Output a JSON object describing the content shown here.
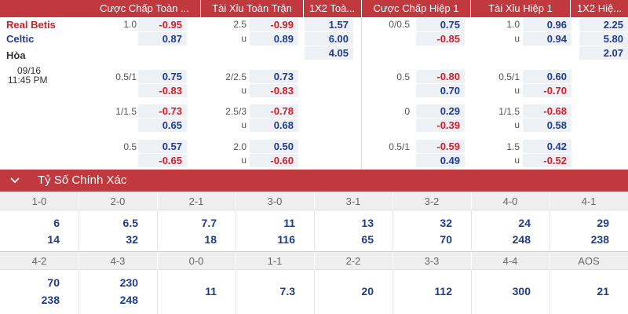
{
  "headers": {
    "h1": "Cược Chấp Toàn ...",
    "h2": "Tài Xỉu Toàn Trận",
    "h3": "1X2 Toà...",
    "h4": "Cược Chấp Hiệp 1",
    "h5": "Tài Xỉu Hiệp 1",
    "h6": "1X2 Hiệ..."
  },
  "match": {
    "home": "Real Betis",
    "away": "Celtic",
    "draw": "Hòa",
    "date": "09/16",
    "time": "11:45 PM"
  },
  "rows": {
    "r1": {
      "ft_hdp_line": "1.0",
      "ft_hdp_home": "-0.95",
      "ft_hdp_away": "0.87",
      "ft_ou_line": "2.5",
      "ft_ou_under": "u",
      "ft_ou_over": "-0.99",
      "ft_ou_u": "0.89",
      "x12_home": "1.57",
      "x12_away": "6.00",
      "x12_draw": "4.05",
      "h1_hdp_line": "0/0.5",
      "h1_hdp_home": "0.75",
      "h1_hdp_away": "-0.85",
      "h1_ou_line": "1.0",
      "h1_ou_under": "u",
      "h1_ou_over": "0.96",
      "h1_ou_u": "0.94",
      "h1x12_home": "2.25",
      "h1x12_away": "5.80",
      "h1x12_draw": "2.07"
    },
    "r2": {
      "ft_hdp_line": "0.5/1",
      "ft_hdp_home": "0.75",
      "ft_hdp_away": "-0.83",
      "ft_ou_line": "2/2.5",
      "ft_ou_under": "u",
      "ft_ou_over": "0.73",
      "ft_ou_u": "-0.83",
      "h1_hdp_line": "0.5",
      "h1_hdp_home": "-0.80",
      "h1_hdp_away": "0.70",
      "h1_ou_line": "0.5/1",
      "h1_ou_under": "u",
      "h1_ou_over": "0.60",
      "h1_ou_u": "-0.70"
    },
    "r3": {
      "ft_hdp_line": "1/1.5",
      "ft_hdp_home": "-0.73",
      "ft_hdp_away": "0.65",
      "ft_ou_line": "2.5/3",
      "ft_ou_under": "u",
      "ft_ou_over": "-0.78",
      "ft_ou_u": "0.68",
      "h1_hdp_line": "0",
      "h1_hdp_home": "0.29",
      "h1_hdp_away": "-0.39",
      "h1_ou_line": "1/1.5",
      "h1_ou_under": "u",
      "h1_ou_over": "-0.68",
      "h1_ou_u": "0.58"
    },
    "r4": {
      "ft_hdp_line": "0.5",
      "ft_hdp_home": "0.57",
      "ft_hdp_away": "-0.65",
      "ft_ou_line": "2.0",
      "ft_ou_under": "u",
      "ft_ou_over": "0.50",
      "ft_ou_u": "-0.60",
      "h1_hdp_line": "0.5/1",
      "h1_hdp_home": "-0.59",
      "h1_hdp_away": "0.49",
      "h1_ou_line": "1.5",
      "h1_ou_under": "u",
      "h1_ou_over": "0.42",
      "h1_ou_u": "-0.52"
    }
  },
  "correct_score": {
    "title": "Tỷ Số Chính Xác",
    "row1_labels": [
      "1-0",
      "2-0",
      "2-1",
      "3-0",
      "3-1",
      "3-2",
      "4-0",
      "4-1"
    ],
    "row1_home": [
      "6",
      "6.5",
      "7.7",
      "11",
      "13",
      "32",
      "24",
      "29"
    ],
    "row1_away": [
      "14",
      "32",
      "18",
      "116",
      "65",
      "70",
      "248",
      "238"
    ],
    "row2_labels": [
      "4-2",
      "4-3",
      "0-0",
      "1-1",
      "2-2",
      "3-3",
      "4-4",
      "AOS"
    ],
    "row2_home": [
      "70",
      "230",
      "11",
      "7.3",
      "20",
      "112",
      "300",
      "21"
    ],
    "row2_away": [
      "238",
      "248"
    ]
  },
  "colors": {
    "header_red": "#c0393f",
    "positive_blue": "#1f3c8e",
    "negative_red": "#d01f2a",
    "odds_box": "#edf0f5"
  }
}
